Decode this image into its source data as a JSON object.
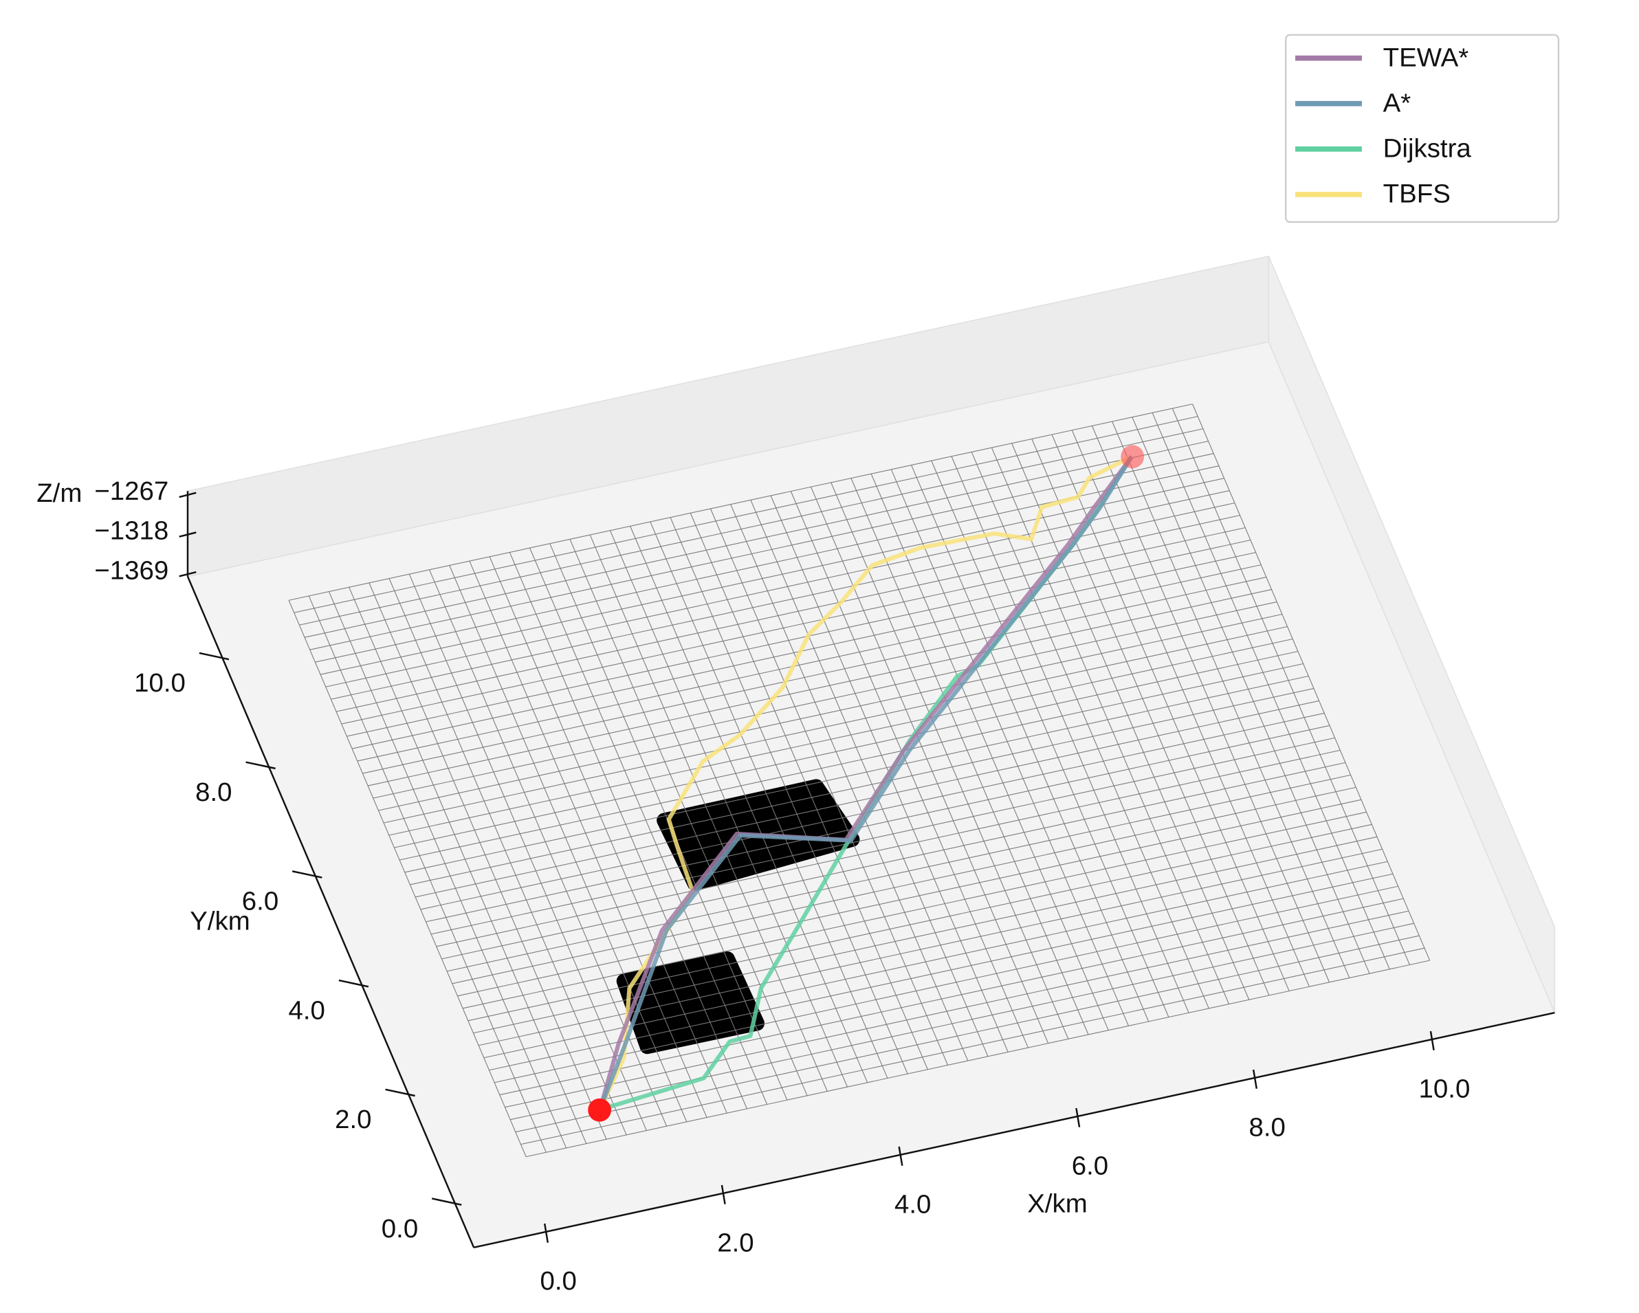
{
  "chart_data": {
    "type": "line3d",
    "xlabel": "X/km",
    "ylabel": "Y/km",
    "zlabel": "Z/m",
    "xlim": [
      -0.8,
      11.4
    ],
    "ylim": [
      -0.8,
      11.5
    ],
    "zlim": [
      -1372,
      -1262
    ],
    "xticks": [
      {
        "value": 0,
        "label": "0.0"
      },
      {
        "value": 2,
        "label": "2.0"
      },
      {
        "value": 4,
        "label": "4.0"
      },
      {
        "value": 6,
        "label": "6.0"
      },
      {
        "value": 8,
        "label": "8.0"
      },
      {
        "value": 10,
        "label": "10.0"
      }
    ],
    "yticks": [
      {
        "value": 0,
        "label": "0.0"
      },
      {
        "value": 2,
        "label": "2.0"
      },
      {
        "value": 4,
        "label": "4.0"
      },
      {
        "value": 6,
        "label": "6.0"
      },
      {
        "value": 8,
        "label": "8.0"
      },
      {
        "value": 10,
        "label": "10.0"
      }
    ],
    "zticks": [
      {
        "value": -1369,
        "label": "−1369"
      },
      {
        "value": -1318,
        "label": "−1318"
      },
      {
        "value": -1267,
        "label": "−1267"
      }
    ],
    "legend": "upper right",
    "series": [
      {
        "name": "TEWA*",
        "color": "#a47aa6",
        "x": [
          0.97,
          1.45,
          2.4,
          3.6,
          4.7,
          5.7,
          6.7,
          8.3,
          8.75,
          9.34
        ],
        "y": [
          0.52,
          1.55,
          3.3,
          4.65,
          4.15,
          5.45,
          6.55,
          8.3,
          8.85,
          9.54
        ]
      },
      {
        "name": "A*",
        "color": "#6f9ab3",
        "x": [
          0.97,
          1.5,
          2.45,
          3.63,
          4.75,
          5.75,
          6.75,
          8.35,
          8.79,
          9.34
        ],
        "y": [
          0.52,
          1.49,
          3.29,
          4.61,
          4.12,
          5.42,
          6.52,
          8.28,
          8.8,
          9.54
        ]
      },
      {
        "name": "Dijkstra",
        "color": "#5fd0a0",
        "x": [
          0.97,
          2.18,
          2.61,
          2.85,
          3.17,
          3.73,
          4.67,
          5.8,
          6.57,
          6.83,
          8.35,
          8.8,
          9.34
        ],
        "y": [
          0.52,
          0.67,
          1.19,
          1.21,
          1.97,
          2.74,
          4.05,
          5.59,
          6.49,
          6.59,
          8.28,
          8.84,
          9.54
        ]
      },
      {
        "name": "TBFS",
        "color": "#f8e27a",
        "x": [
          0.97,
          1.45,
          1.81,
          2.34,
          2.89,
          2.93,
          2.96,
          3.57,
          4.07,
          4.72,
          5.22,
          5.69,
          6.18,
          6.75,
          7.58,
          7.94,
          8.19,
          8.61,
          8.81,
          9.34
        ],
        "y": [
          0.52,
          1.31,
          2.45,
          3.13,
          3.85,
          4.67,
          5.14,
          5.99,
          6.3,
          6.94,
          7.73,
          8.15,
          8.66,
          8.78,
          8.75,
          8.52,
          9.02,
          9.06,
          9.34,
          9.54
        ]
      }
    ]
  }
}
